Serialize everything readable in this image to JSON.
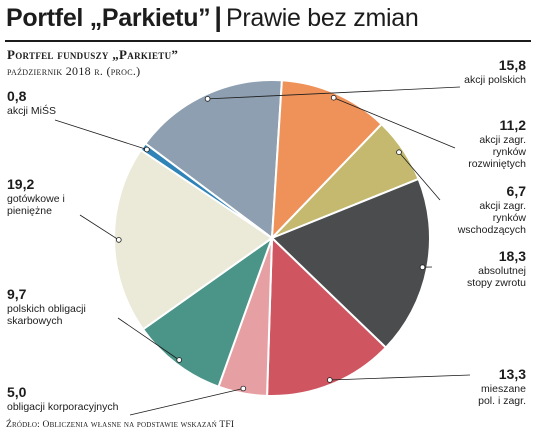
{
  "header": {
    "title": "Portfel „Parkietu”",
    "separator": "|",
    "subtitle": "Prawie bez zmian"
  },
  "chart_data": {
    "type": "pie",
    "title": "Portfel funduszy „Parkietu”",
    "period": "październik 2018 r. (proc.)",
    "source": "Źródło: Obliczenia własne na podstawie wskazań TFI",
    "slices": [
      {
        "value": "15,8",
        "num": 15.8,
        "label": "akcji polskich",
        "color": "#8d9fb0"
      },
      {
        "value": "11,2",
        "num": 11.2,
        "label": "akcji zagr. rynków rozwiniętych",
        "color": "#ee925a"
      },
      {
        "value": "6,7",
        "num": 6.7,
        "label": "akcji zagr. rynków wschodzących",
        "color": "#c4b96e"
      },
      {
        "value": "18,3",
        "num": 18.3,
        "label": "absolutnej stopy zwrotu",
        "color": "#4b4c4e"
      },
      {
        "value": "13,3",
        "num": 13.3,
        "label": "mieszane pol. i zagr.",
        "color": "#cf5661"
      },
      {
        "value": "5,0",
        "num": 5.0,
        "label": "obligacji korporacyjnych",
        "color": "#e6a0a3"
      },
      {
        "value": "9,7",
        "num": 9.7,
        "label": "polskich obligacji skarbowych",
        "color": "#4b9488"
      },
      {
        "value": "19,2",
        "num": 19.2,
        "label": "gotówkowe i pieniężne",
        "color": "#ebe9d8"
      },
      {
        "value": "0,8",
        "num": 0.8,
        "label": "akcji MiŚS",
        "color": "#2f83b7"
      }
    ]
  }
}
